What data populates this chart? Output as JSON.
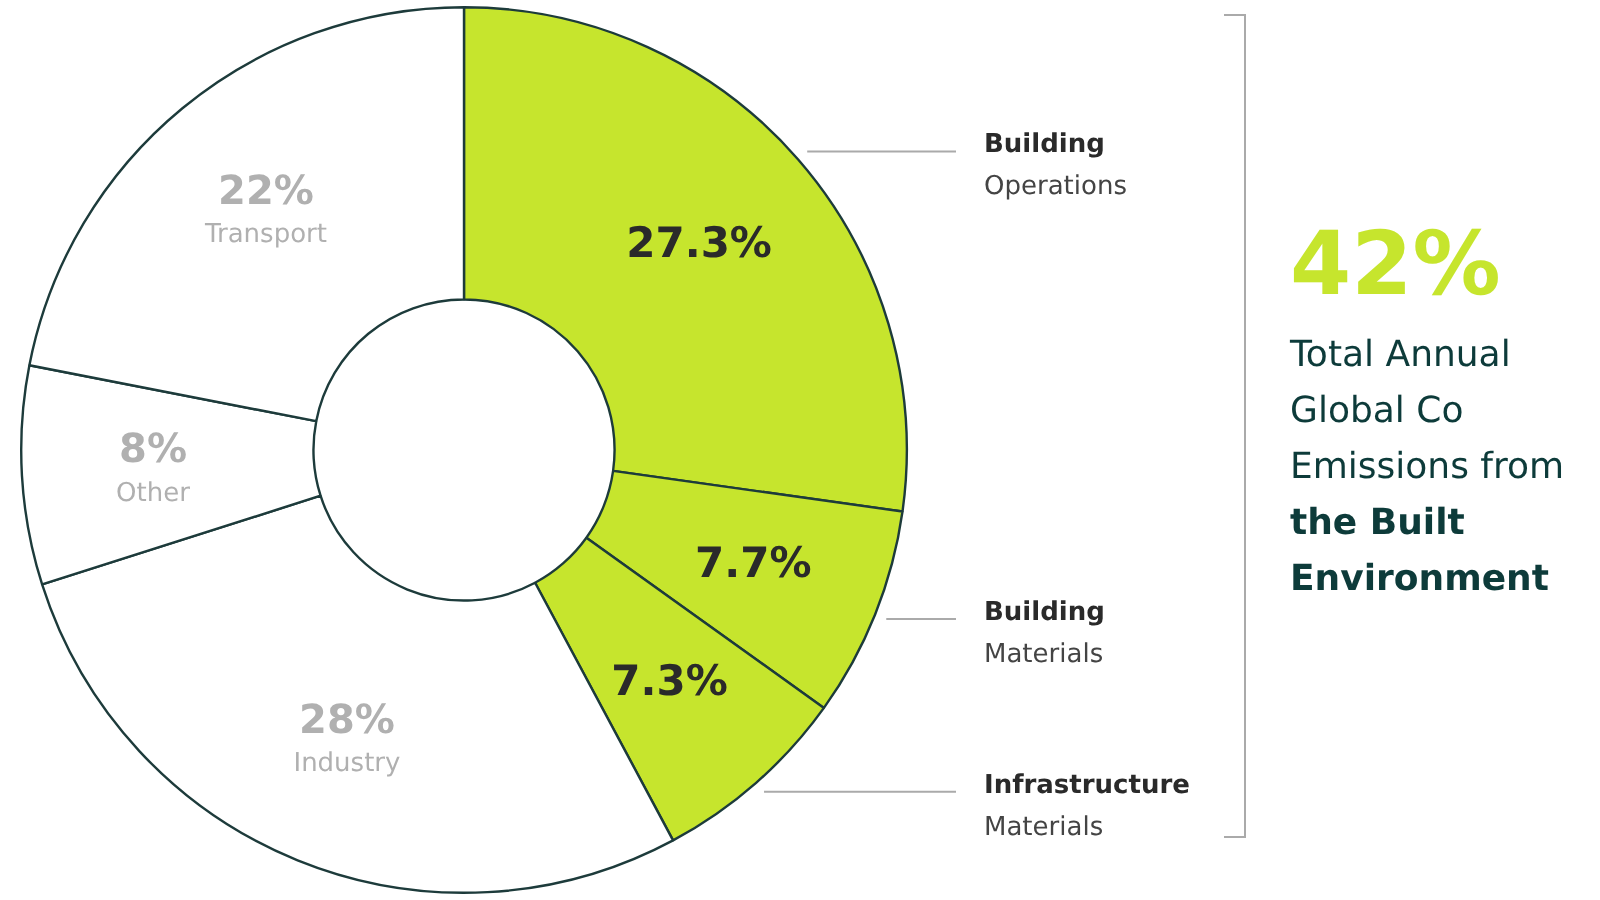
{
  "chart_data": {
    "type": "donut",
    "categories": [
      "Building Operations",
      "Building Materials",
      "Infrastructure Materials",
      "Industry",
      "Other",
      "Transport"
    ],
    "values": [
      27.3,
      7.7,
      7.3,
      28,
      8,
      22
    ],
    "value_labels": [
      "27.3%",
      "7.7%",
      "7.3%",
      "28%",
      "8%",
      "22%"
    ],
    "colors": [
      "#c6e52d",
      "#c6e52d",
      "#c6e52d",
      "#ffffff",
      "#ffffff",
      "#ffffff"
    ],
    "legend": false,
    "annotations": [
      "42%",
      "Total Annual Global Co Emissions from",
      "the Built Environment"
    ]
  }
}
